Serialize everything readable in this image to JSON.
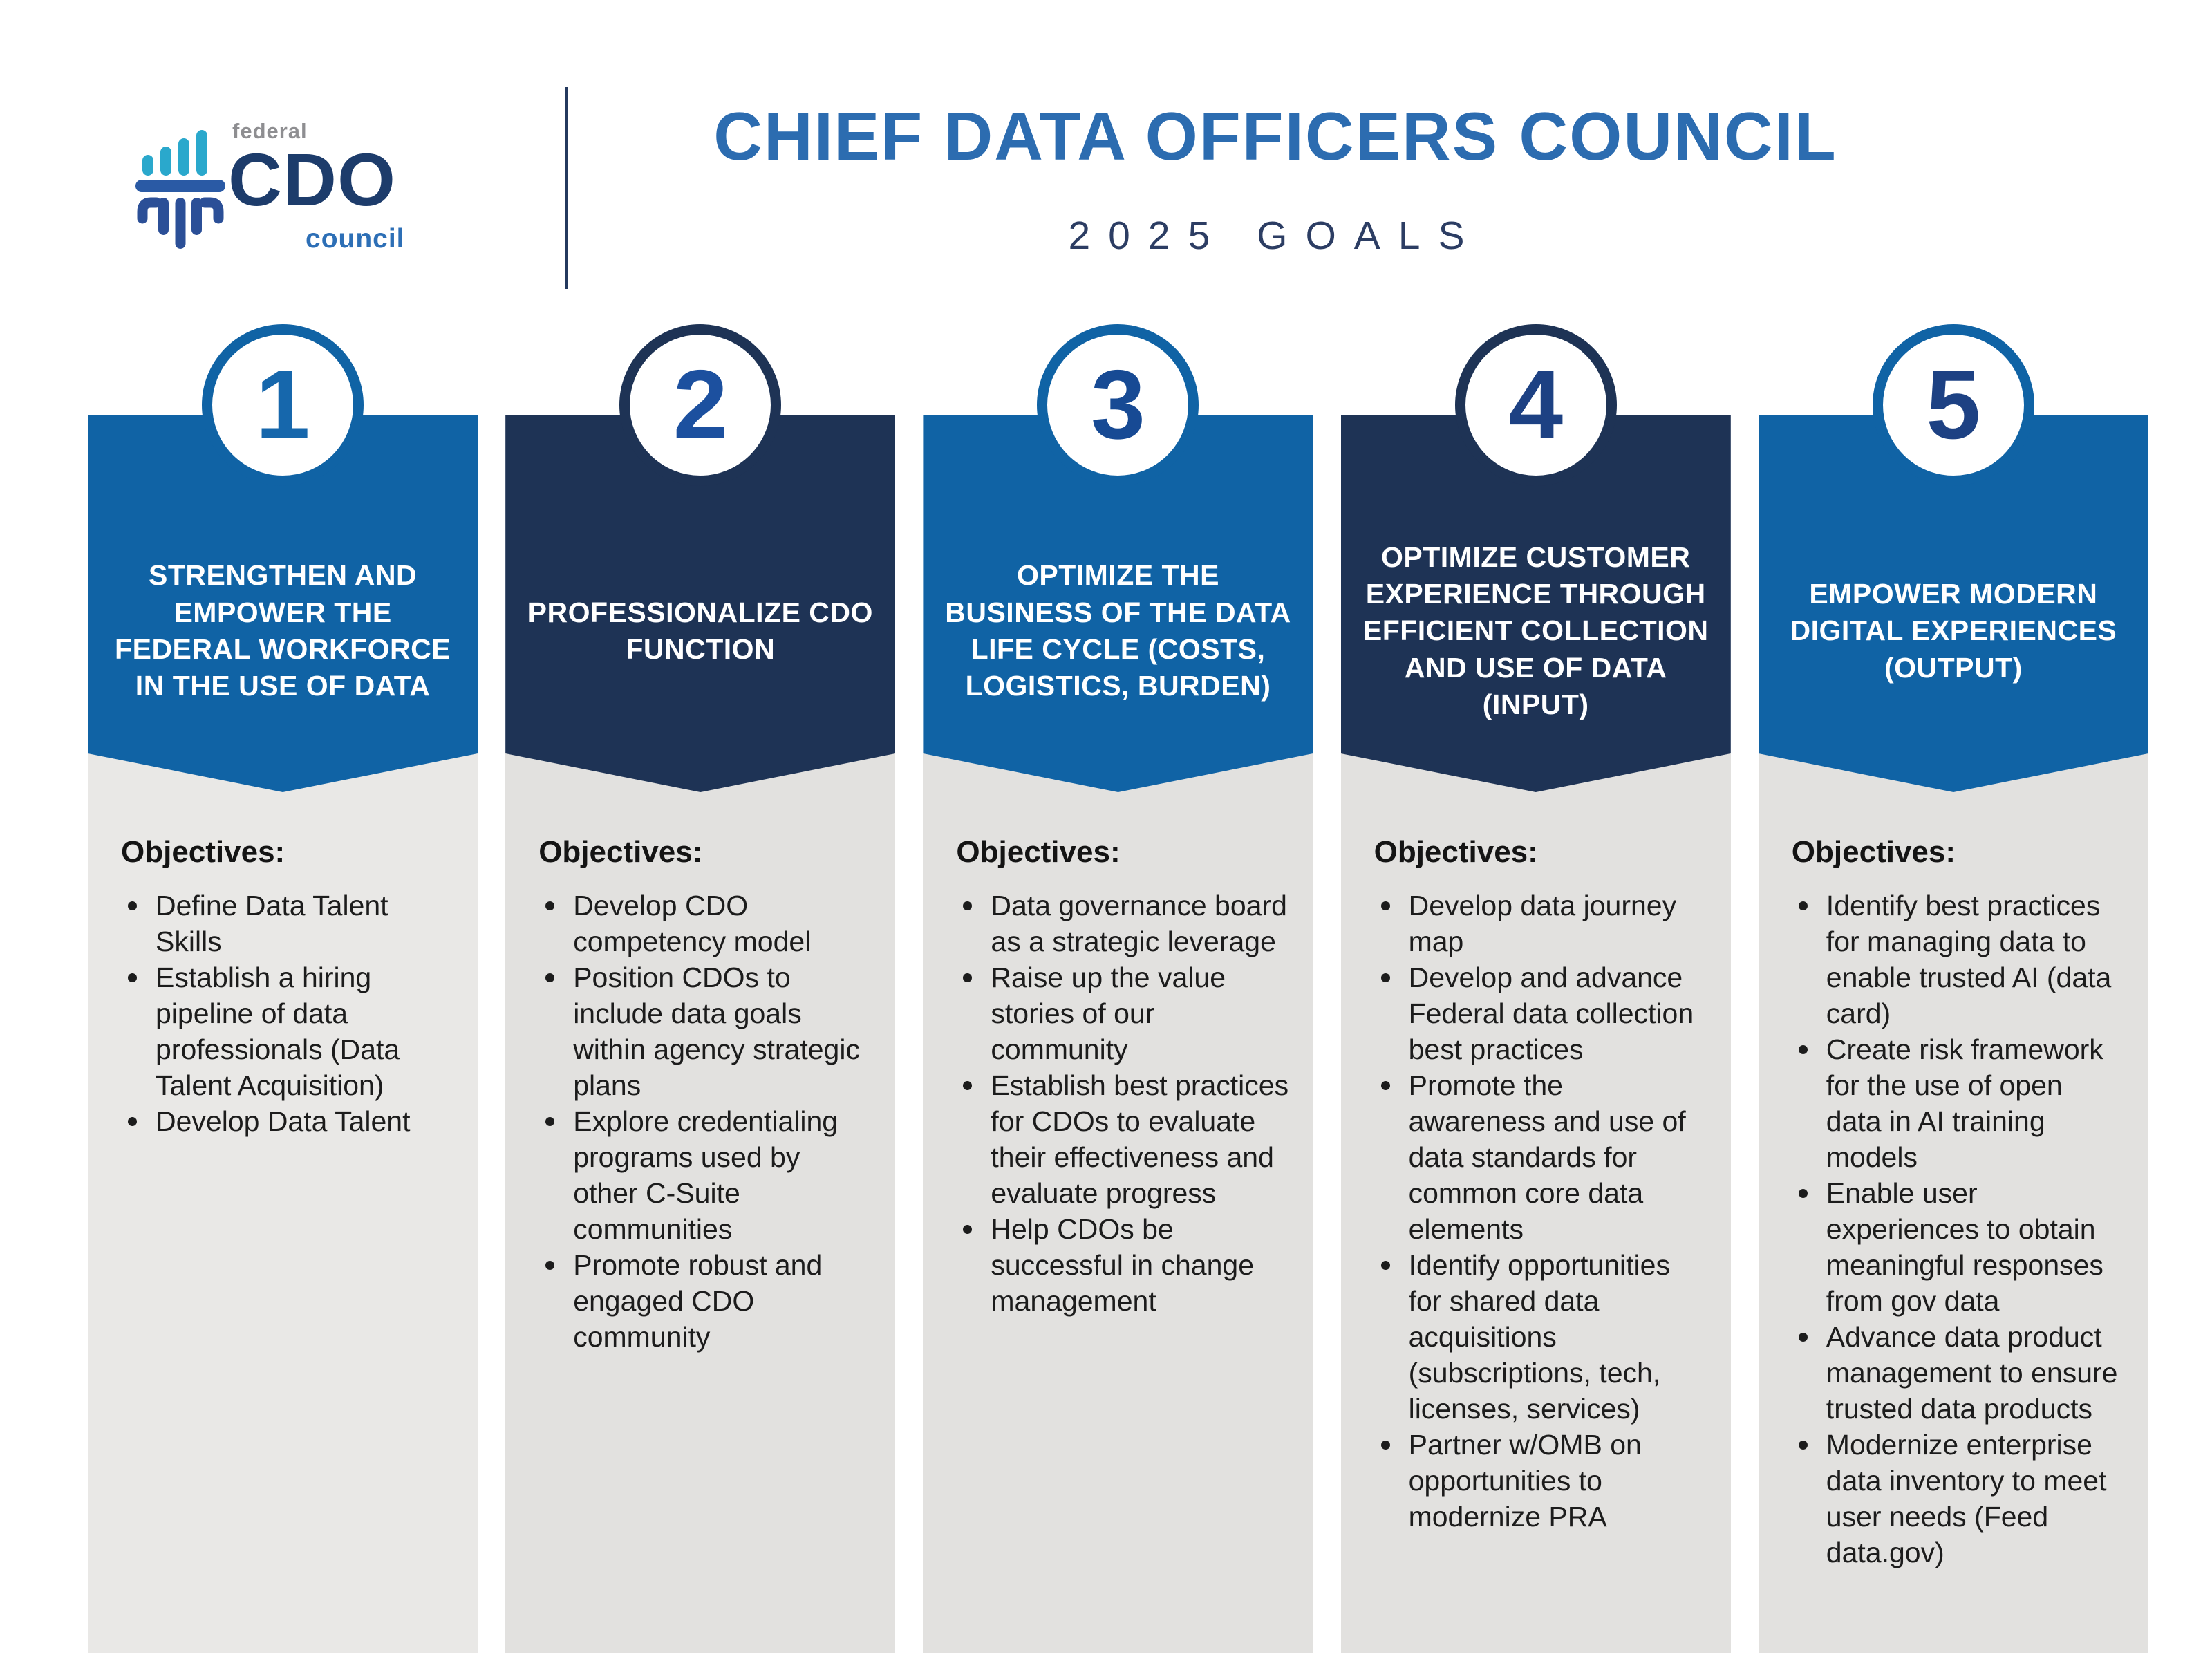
{
  "header": {
    "logo_federal": "federal",
    "logo_cdo": "CDO",
    "logo_council": "council",
    "title": "CHIEF DATA OFFICERS COUNCIL",
    "subtitle": "2025 GOALS"
  },
  "colors": {
    "blue": "#1063a5",
    "navy": "#1e3355",
    "title_blue": "#2c6cb0",
    "subtitle_navy": "#2c3d63",
    "body_gray": "#e2e1df",
    "body_gray_light": "#e9e8e6",
    "logo_teal": "#2aa8cc",
    "logo_capital_blue": "#2a5aa5",
    "logo_shaft_navy": "#2b4f97",
    "logo_navy_text": "#1d3c6b",
    "logo_blue_text": "#2d6fb6",
    "logo_gray_text": "#8e8e91",
    "banner_text": "#ffffff",
    "objectives_text": "#1c1c1c"
  },
  "columns": [
    {
      "number": "1",
      "theme": "blue",
      "accent": "#1063a5",
      "number_color": "#1667ac",
      "body_color": "#e9e8e6",
      "heading": "STRENGTHEN AND EMPOWER THE FEDERAL WORKFORCE IN THE USE OF DATA",
      "objectives_label": "Objectives:",
      "objectives": [
        "Define Data Talent Skills",
        "Establish a hiring pipeline of data professionals (Data Talent Acquisition)",
        "Develop Data Talent"
      ]
    },
    {
      "number": "2",
      "theme": "navy",
      "accent": "#1e3355",
      "number_color": "#1c509f",
      "body_color": "#e2e1df",
      "heading": "PROFESSIONALIZE CDO FUNCTION",
      "objectives_label": "Objectives:",
      "objectives": [
        "Develop CDO competency model",
        "Position CDOs to include data goals within  agency strategic plans",
        "Explore credentialing programs used by other C-Suite communities",
        "Promote robust and engaged CDO community"
      ]
    },
    {
      "number": "3",
      "theme": "blue",
      "accent": "#1063a5",
      "number_color": "#174a94",
      "body_color": "#e2e1df",
      "heading": "OPTIMIZE THE BUSINESS OF THE DATA LIFE CYCLE (COSTS, LOGISTICS, BURDEN)",
      "objectives_label": "Objectives:",
      "objectives": [
        "Data governance board as a strategic leverage",
        "Raise up the value stories of our community",
        "Establish best practices for CDOs to evaluate their effectiveness and evaluate progress",
        "Help CDOs be successful in change management"
      ]
    },
    {
      "number": "4",
      "theme": "navy",
      "accent": "#1e3355",
      "number_color": "#1d4183",
      "body_color": "#e2e1df",
      "heading": "OPTIMIZE CUSTOMER EXPERIENCE THROUGH EFFICIENT COLLECTION AND USE OF DATA (INPUT)",
      "objectives_label": "Objectives:",
      "objectives": [
        "Develop data journey map",
        "Develop and advance Federal data collection best practices",
        "Promote the awareness and use of data standards for common core data elements",
        "Identify opportunities for shared data acquisitions (subscriptions, tech, licenses, services)",
        "Partner w/OMB on opportunities to modernize PRA"
      ]
    },
    {
      "number": "5",
      "theme": "blue",
      "accent": "#1063a5",
      "number_color": "#1d4183",
      "body_color": "#e2e1df",
      "heading": "EMPOWER MODERN DIGITAL EXPERIENCES (OUTPUT)",
      "objectives_label": "Objectives:",
      "objectives": [
        "Identify best practices for managing data to enable trusted AI (data card)",
        "Create risk framework for the use of open data in AI training models",
        "Enable user experiences to obtain meaningful responses from gov data",
        "Advance data product management to ensure trusted data products",
        "Modernize enterprise data inventory to meet user needs (Feed data.gov)"
      ]
    }
  ]
}
